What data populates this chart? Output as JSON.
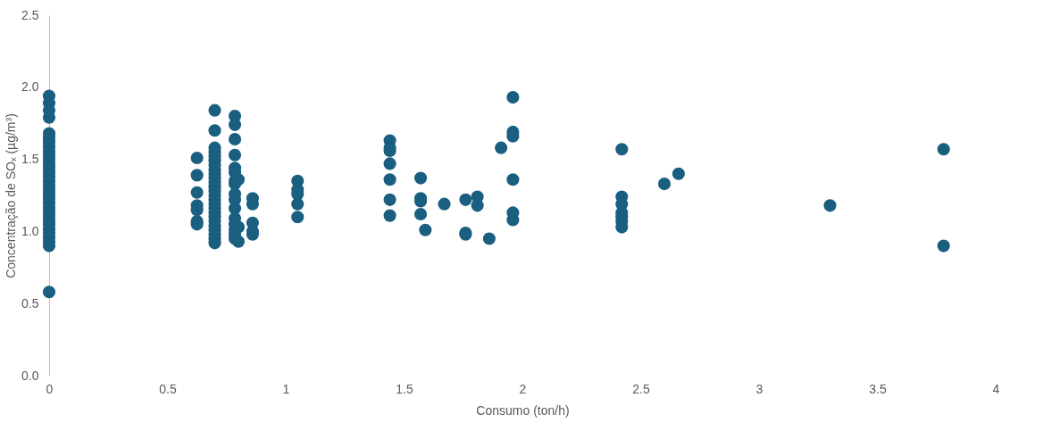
{
  "chart_data": {
    "type": "scatter",
    "xlabel": "Consumo (ton/h)",
    "ylabel": "Concentração de SOₓ (µg/m³)",
    "xlim": [
      0,
      4
    ],
    "xticks": [
      0,
      0.5,
      1,
      1.5,
      2,
      2.5,
      3,
      3.5,
      4
    ],
    "ylim": [
      0,
      2.5
    ],
    "yticks": [
      {
        "value": 0,
        "label": "0.0"
      },
      {
        "value": 0.5,
        "label": "0.5"
      },
      {
        "value": 1,
        "label": "1.0"
      },
      {
        "value": 1.5,
        "label": "1.5"
      },
      {
        "value": 2,
        "label": "2.0"
      },
      {
        "value": 2.5,
        "label": "2.5"
      }
    ],
    "grid": false,
    "marker": "circle",
    "series": [
      {
        "color": "#1a5f80",
        "x": [
          0,
          0,
          0,
          0,
          0,
          0,
          0,
          0,
          0,
          0,
          0,
          0,
          0,
          0,
          0,
          0,
          0,
          0,
          0,
          0,
          0,
          0,
          0,
          0,
          0,
          0,
          0,
          0,
          0,
          0,
          0,
          0,
          0.625,
          0.625,
          0.625,
          0.625,
          0.625,
          0.625,
          0.625,
          0.7,
          0.7,
          0.7,
          0.7,
          0.7,
          0.7,
          0.7,
          0.7,
          0.7,
          0.7,
          0.7,
          0.7,
          0.7,
          0.7,
          0.7,
          0.7,
          0.7,
          0.7,
          0.7,
          0.7,
          0.7,
          0.7,
          0.7,
          0.7,
          0.7,
          0.785,
          0.785,
          0.785,
          0.785,
          0.785,
          0.785,
          0.785,
          0.785,
          0.785,
          0.785,
          0.785,
          0.785,
          0.785,
          0.785,
          0.785,
          0.785,
          0.8,
          0.8,
          0.8,
          0.86,
          0.86,
          0.86,
          0.86,
          0.86,
          1.05,
          1.05,
          1.05,
          1.05,
          1.05,
          1.44,
          1.44,
          1.44,
          1.44,
          1.44,
          1.44,
          1.44,
          1.57,
          1.57,
          1.57,
          1.57,
          1.59,
          1.67,
          1.76,
          1.76,
          1.76,
          1.81,
          1.81,
          1.86,
          1.91,
          1.96,
          1.96,
          1.96,
          1.96,
          1.96,
          1.96,
          2.42,
          2.42,
          2.42,
          2.42,
          2.42,
          2.42,
          2.42,
          2.6,
          2.66,
          3.3,
          3.78,
          3.78
        ],
        "values": [
          0.58,
          0.9,
          0.93,
          0.96,
          0.99,
          1.02,
          1.05,
          1.08,
          1.11,
          1.14,
          1.17,
          1.2,
          1.23,
          1.26,
          1.29,
          1.32,
          1.35,
          1.38,
          1.41,
          1.44,
          1.47,
          1.5,
          1.53,
          1.56,
          1.59,
          1.62,
          1.65,
          1.68,
          1.79,
          1.84,
          1.89,
          1.94,
          1.51,
          1.39,
          1.27,
          1.18,
          1.15,
          1.07,
          1.05,
          1.84,
          1.7,
          1.58,
          1.55,
          1.52,
          1.49,
          1.46,
          1.43,
          1.4,
          1.37,
          1.34,
          1.31,
          1.28,
          1.25,
          1.22,
          1.19,
          1.16,
          1.13,
          1.1,
          1.07,
          1.04,
          1.01,
          0.98,
          0.95,
          0.92,
          1.8,
          1.74,
          1.64,
          1.53,
          1.44,
          1.41,
          1.35,
          1.33,
          1.26,
          1.22,
          1.16,
          1.09,
          1.05,
          1.01,
          0.98,
          0.95,
          1.36,
          1.03,
          0.93,
          1.23,
          1.19,
          1.06,
          1.0,
          0.98,
          1.35,
          1.29,
          1.26,
          1.19,
          1.1,
          1.63,
          1.58,
          1.56,
          1.47,
          1.36,
          1.22,
          1.11,
          1.37,
          1.23,
          1.21,
          1.12,
          1.01,
          1.19,
          1.22,
          0.99,
          0.98,
          1.24,
          1.18,
          0.95,
          1.58,
          1.93,
          1.69,
          1.66,
          1.36,
          1.13,
          1.08,
          1.57,
          1.24,
          1.19,
          1.13,
          1.1,
          1.07,
          1.03,
          1.33,
          1.4,
          1.18,
          1.57,
          0.9
        ]
      }
    ]
  }
}
